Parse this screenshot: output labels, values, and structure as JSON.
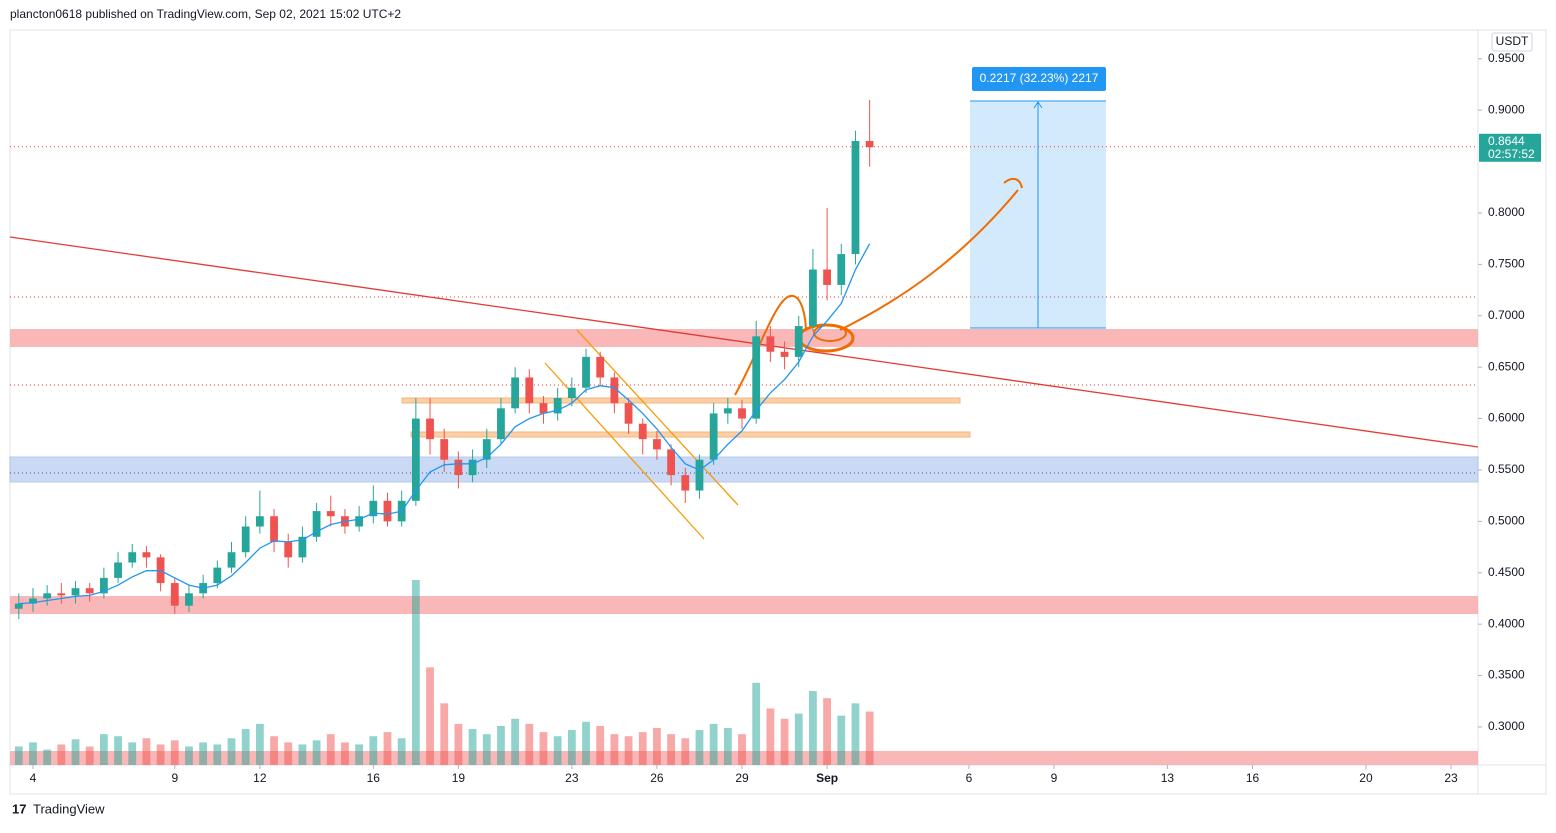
{
  "header": {
    "text": "plancton0618 published on TradingView.com, Sep 02, 2021 15:02 UTC+2"
  },
  "footer": {
    "brand": "TradingView"
  },
  "chart_data": {
    "type": "candlestick",
    "y_unit": "USDT",
    "up_color": "#26a69a",
    "down_color": "#ef5350",
    "grid": false,
    "x": [
      3.5,
      4,
      4.5,
      5,
      5.5,
      6,
      6.5,
      7,
      7.5,
      8,
      8.5,
      9,
      9.5,
      10,
      10.5,
      11,
      11.5,
      12,
      12.5,
      13,
      13.5,
      14,
      14.5,
      15,
      15.5,
      16,
      16.5,
      17,
      17.5,
      18,
      18.5,
      19,
      19.5,
      20,
      20.5,
      21,
      21.5,
      22,
      22.5,
      23,
      23.5,
      24,
      24.5,
      25,
      25.5,
      26,
      26.5,
      27,
      27.5,
      28,
      28.5,
      29,
      29.5,
      30,
      30.5,
      31,
      31.5,
      32,
      32.5,
      33,
      33.5
    ],
    "open": [
      0.415,
      0.42,
      0.425,
      0.43,
      0.428,
      0.435,
      0.43,
      0.445,
      0.46,
      0.47,
      0.465,
      0.44,
      0.418,
      0.43,
      0.44,
      0.455,
      0.47,
      0.495,
      0.505,
      0.48,
      0.465,
      0.485,
      0.51,
      0.505,
      0.495,
      0.505,
      0.52,
      0.5,
      0.52,
      0.6,
      0.58,
      0.56,
      0.545,
      0.56,
      0.58,
      0.61,
      0.64,
      0.615,
      0.605,
      0.62,
      0.63,
      0.66,
      0.64,
      0.615,
      0.595,
      0.58,
      0.57,
      0.545,
      0.53,
      0.56,
      0.605,
      0.61,
      0.6,
      0.68,
      0.665,
      0.66,
      0.69,
      0.745,
      0.73,
      0.76,
      0.87
    ],
    "high": [
      0.43,
      0.435,
      0.438,
      0.44,
      0.442,
      0.44,
      0.455,
      0.47,
      0.478,
      0.476,
      0.468,
      0.445,
      0.438,
      0.448,
      0.462,
      0.48,
      0.505,
      0.53,
      0.512,
      0.488,
      0.495,
      0.518,
      0.525,
      0.512,
      0.515,
      0.535,
      0.528,
      0.53,
      0.62,
      0.62,
      0.59,
      0.568,
      0.57,
      0.59,
      0.62,
      0.65,
      0.648,
      0.622,
      0.63,
      0.64,
      0.668,
      0.665,
      0.645,
      0.62,
      0.6,
      0.588,
      0.575,
      0.552,
      0.565,
      0.615,
      0.62,
      0.618,
      0.695,
      0.69,
      0.675,
      0.7,
      0.765,
      0.805,
      0.77,
      0.88,
      0.91
    ],
    "low": [
      0.405,
      0.412,
      0.418,
      0.42,
      0.42,
      0.422,
      0.425,
      0.44,
      0.455,
      0.455,
      0.432,
      0.41,
      0.412,
      0.425,
      0.435,
      0.45,
      0.465,
      0.488,
      0.47,
      0.455,
      0.46,
      0.48,
      0.495,
      0.488,
      0.49,
      0.498,
      0.495,
      0.495,
      0.515,
      0.565,
      0.548,
      0.532,
      0.538,
      0.552,
      0.575,
      0.605,
      0.605,
      0.595,
      0.598,
      0.612,
      0.625,
      0.632,
      0.605,
      0.585,
      0.565,
      0.56,
      0.535,
      0.518,
      0.522,
      0.555,
      0.595,
      0.59,
      0.595,
      0.655,
      0.648,
      0.65,
      0.685,
      0.715,
      0.72,
      0.75,
      0.845
    ],
    "close": [
      0.42,
      0.425,
      0.43,
      0.428,
      0.435,
      0.43,
      0.445,
      0.46,
      0.47,
      0.465,
      0.44,
      0.418,
      0.43,
      0.44,
      0.455,
      0.47,
      0.495,
      0.505,
      0.48,
      0.465,
      0.485,
      0.51,
      0.505,
      0.495,
      0.505,
      0.52,
      0.5,
      0.52,
      0.6,
      0.58,
      0.56,
      0.545,
      0.56,
      0.58,
      0.61,
      0.64,
      0.615,
      0.605,
      0.62,
      0.63,
      0.66,
      0.64,
      0.615,
      0.595,
      0.58,
      0.57,
      0.545,
      0.53,
      0.56,
      0.605,
      0.61,
      0.6,
      0.68,
      0.665,
      0.66,
      0.69,
      0.745,
      0.73,
      0.76,
      0.87,
      0.864
    ],
    "volume": [
      18,
      22,
      15,
      20,
      25,
      18,
      30,
      28,
      22,
      26,
      20,
      24,
      18,
      22,
      20,
      26,
      35,
      40,
      28,
      22,
      20,
      24,
      30,
      22,
      20,
      28,
      32,
      26,
      180,
      95,
      60,
      40,
      35,
      30,
      38,
      45,
      40,
      32,
      28,
      34,
      42,
      38,
      30,
      28,
      32,
      36,
      30,
      26,
      34,
      40,
      36,
      30,
      80,
      55,
      45,
      50,
      72,
      65,
      48,
      60,
      52
    ],
    "ma": {
      "color": "#2196f3",
      "values": [
        0.42,
        0.421,
        0.423,
        0.425,
        0.427,
        0.428,
        0.432,
        0.438,
        0.446,
        0.452,
        0.452,
        0.445,
        0.438,
        0.435,
        0.438,
        0.447,
        0.46,
        0.474,
        0.481,
        0.48,
        0.482,
        0.49,
        0.497,
        0.5,
        0.502,
        0.508,
        0.507,
        0.51,
        0.53,
        0.548,
        0.555,
        0.556,
        0.556,
        0.562,
        0.575,
        0.592,
        0.6,
        0.605,
        0.608,
        0.615,
        0.628,
        0.632,
        0.63,
        0.618,
        0.605,
        0.59,
        0.572,
        0.556,
        0.55,
        0.56,
        0.575,
        0.588,
        0.608,
        0.625,
        0.638,
        0.655,
        0.68,
        0.695,
        0.712,
        0.745,
        0.77
      ]
    },
    "xlim": [
      3.19,
      54.95
    ],
    "xticks": [
      4,
      9,
      12,
      16,
      19,
      23,
      26,
      29,
      {
        "value": 32,
        "label": "Sep"
      },
      {
        "value": 37,
        "label": "6"
      },
      {
        "value": 40,
        "label": "9"
      },
      {
        "value": 44,
        "label": "13"
      },
      {
        "value": 47,
        "label": "16"
      },
      {
        "value": 51,
        "label": "20"
      },
      {
        "value": 54,
        "label": "23"
      }
    ],
    "ylim": [
      0.263,
      0.978
    ],
    "yticks": [
      {
        "value": 0.95,
        "label": "0.9500"
      },
      {
        "value": 0.9,
        "label": "0.9000"
      },
      {
        "value": 0.8,
        "label": "0.8000"
      },
      {
        "value": 0.75,
        "label": "0.7500"
      },
      {
        "value": 0.7,
        "label": "0.7000"
      },
      {
        "value": 0.65,
        "label": "0.6500"
      },
      {
        "value": 0.6,
        "label": "0.6000"
      },
      {
        "value": 0.55,
        "label": "0.5500"
      },
      {
        "value": 0.5,
        "label": "0.5000"
      },
      {
        "value": 0.45,
        "label": "0.4500"
      },
      {
        "value": 0.4,
        "label": "0.4000"
      },
      {
        "value": 0.35,
        "label": "0.3500"
      },
      {
        "value": 0.3,
        "label": "0.3000"
      }
    ],
    "last_price": 0.8644,
    "countdown": "02:57:52",
    "measure_label": "0.2217 (32.23%) 2217"
  }
}
